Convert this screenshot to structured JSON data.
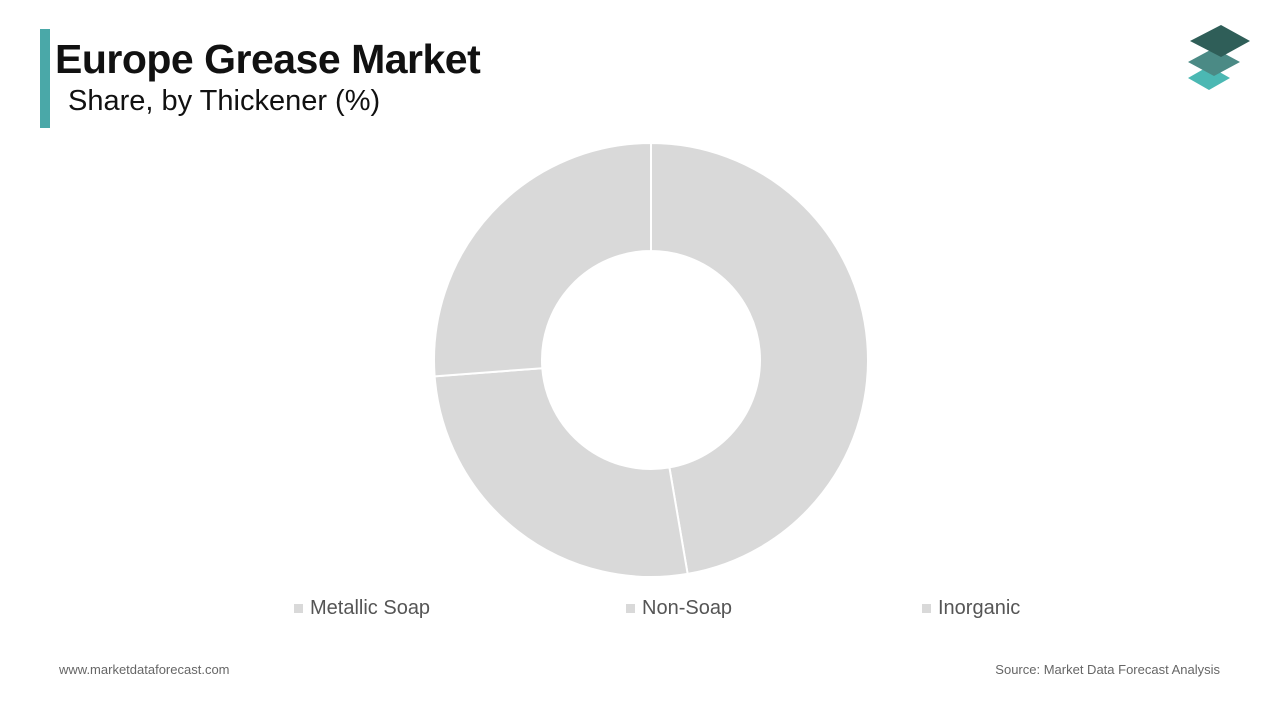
{
  "header": {
    "title": "Europe Grease Market",
    "subtitle": "Share, by Thickener (%)"
  },
  "footer": {
    "website": "www.marketdataforecast.com",
    "source": "Source: Market Data Forecast Analysis"
  },
  "colors": {
    "accent": "#4aa8a8",
    "slice": "#d9d9d9",
    "separator": "#ffffff",
    "logo_top": "#2f5e58",
    "logo_middle": "#4b8a85",
    "logo_bottom": "#4bb8b3"
  },
  "logo": {
    "icon": "stacked-layers-icon"
  },
  "chart_data": {
    "type": "pie",
    "variant": "donut",
    "categories": [
      "Metallic Soap",
      "Non-Soap",
      "Inorganic"
    ],
    "values": [
      47.3,
      26.5,
      26.2
    ],
    "legend_position": "bottom"
  }
}
